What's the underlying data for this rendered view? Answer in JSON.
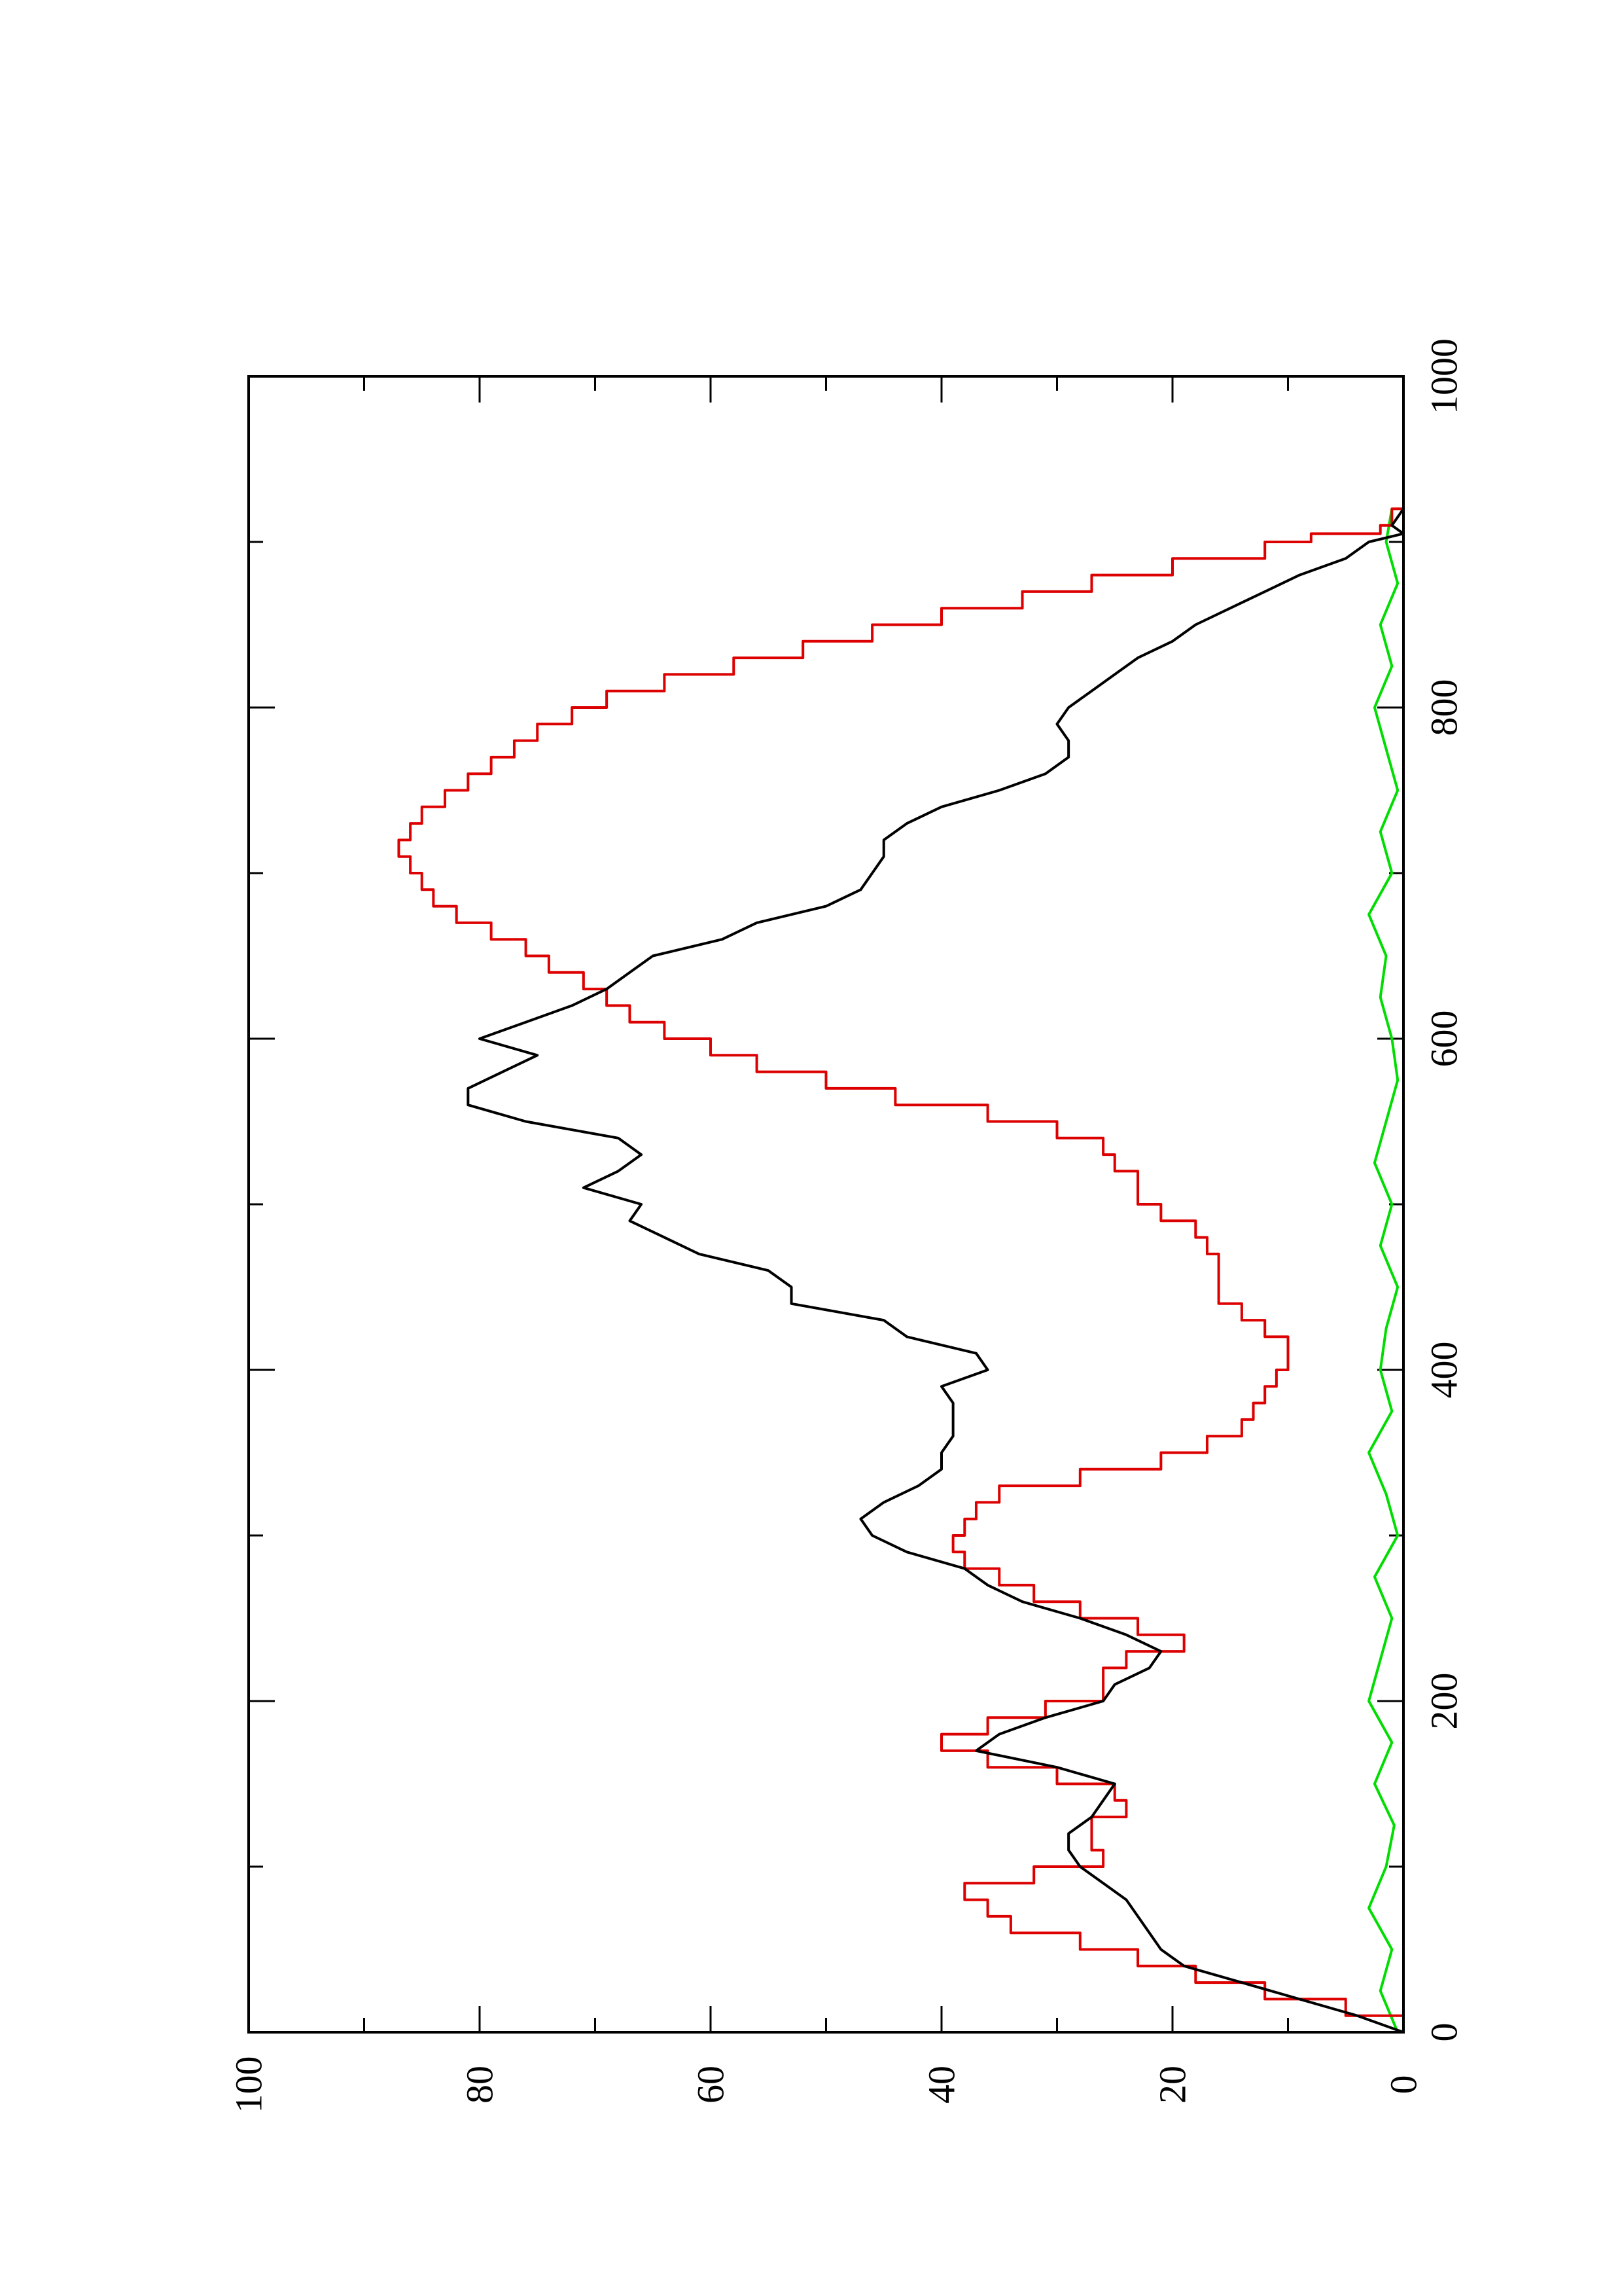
{
  "chart_data": {
    "type": "line",
    "title": "",
    "xlabel": "",
    "ylabel": "",
    "orientation": "rotated 90 degrees counter-clockwise",
    "xlim": [
      0,
      1000
    ],
    "ylim": [
      0,
      100
    ],
    "x_ticks_major": [
      0,
      200,
      400,
      600,
      800,
      1000
    ],
    "x_tick_labels": [
      "0",
      "200",
      "400",
      "600",
      "800",
      "1000"
    ],
    "x_ticks_minor": [
      100,
      300,
      500,
      700,
      900
    ],
    "y_ticks_major": [
      0,
      20,
      40,
      60,
      80,
      100
    ],
    "y_tick_labels": [
      "0",
      "20",
      "40",
      "60",
      "80",
      "100"
    ],
    "y_ticks_minor": [
      10,
      30,
      50,
      70,
      90
    ],
    "grid": false,
    "legend": "none",
    "series": [
      {
        "color": "#000000",
        "style": "line",
        "x": [
          0,
          10,
          20,
          30,
          40,
          50,
          60,
          70,
          80,
          90,
          100,
          110,
          120,
          130,
          140,
          150,
          160,
          170,
          180,
          190,
          200,
          210,
          220,
          230,
          240,
          250,
          260,
          270,
          280,
          290,
          300,
          310,
          320,
          330,
          340,
          350,
          360,
          370,
          380,
          390,
          400,
          410,
          420,
          430,
          440,
          450,
          460,
          470,
          480,
          490,
          500,
          510,
          520,
          530,
          540,
          550,
          560,
          570,
          580,
          590,
          600,
          610,
          620,
          630,
          640,
          650,
          660,
          670,
          680,
          690,
          700,
          710,
          720,
          730,
          740,
          750,
          760,
          770,
          780,
          790,
          800,
          810,
          820,
          830,
          840,
          850,
          860,
          870,
          880,
          890,
          900,
          905,
          910,
          920
        ],
        "y": [
          0,
          4,
          9,
          14,
          19,
          21,
          22,
          23,
          24,
          26,
          28,
          29,
          29,
          27,
          26,
          25,
          30,
          37,
          35,
          31,
          26,
          25,
          22,
          21,
          24,
          28,
          33,
          36,
          38,
          43,
          46,
          47,
          45,
          42,
          40,
          40,
          39,
          39,
          39,
          40,
          36,
          37,
          43,
          45,
          53,
          53,
          55,
          61,
          64,
          67,
          66,
          71,
          68,
          66,
          68,
          76,
          81,
          81,
          78,
          75,
          80,
          76,
          72,
          69,
          67,
          65,
          59,
          56,
          50,
          47,
          46,
          45,
          45,
          43,
          40,
          35,
          31,
          29,
          29,
          30,
          29,
          27,
          25,
          23,
          20,
          18,
          15,
          12,
          9,
          5,
          3,
          0,
          1,
          0
        ]
      },
      {
        "color": "#dd0000",
        "style": "step",
        "x": [
          0,
          10,
          20,
          30,
          40,
          50,
          60,
          70,
          80,
          90,
          100,
          110,
          120,
          130,
          140,
          150,
          160,
          170,
          180,
          190,
          200,
          210,
          220,
          230,
          240,
          250,
          260,
          270,
          280,
          290,
          300,
          310,
          320,
          330,
          340,
          350,
          360,
          370,
          380,
          390,
          400,
          410,
          420,
          430,
          440,
          450,
          460,
          470,
          480,
          490,
          500,
          510,
          520,
          530,
          540,
          550,
          560,
          570,
          580,
          590,
          600,
          610,
          620,
          630,
          640,
          650,
          660,
          670,
          680,
          690,
          700,
          710,
          720,
          730,
          740,
          750,
          760,
          770,
          780,
          790,
          800,
          810,
          820,
          830,
          840,
          850,
          860,
          870,
          880,
          890,
          900,
          905,
          910,
          920
        ],
        "y": [
          0,
          5,
          12,
          18,
          23,
          28,
          34,
          36,
          38,
          32,
          26,
          27,
          27,
          24,
          25,
          30,
          36,
          40,
          36,
          31,
          26,
          26,
          24,
          19,
          23,
          28,
          32,
          35,
          38,
          39,
          38,
          37,
          35,
          28,
          21,
          17,
          14,
          13,
          12,
          11,
          10,
          10,
          12,
          14,
          16,
          16,
          16,
          17,
          18,
          21,
          23,
          23,
          25,
          26,
          30,
          36,
          44,
          50,
          56,
          60,
          64,
          67,
          69,
          71,
          74,
          76,
          79,
          82,
          84,
          85,
          86,
          87,
          86,
          85,
          83,
          81,
          79,
          77,
          75,
          72,
          69,
          64,
          58,
          52,
          46,
          40,
          33,
          27,
          20,
          12,
          8,
          2,
          1,
          0
        ]
      },
      {
        "color": "#00dd00",
        "style": "line",
        "x": [
          0,
          25,
          50,
          75,
          100,
          125,
          150,
          175,
          200,
          225,
          250,
          275,
          300,
          325,
          350,
          375,
          400,
          425,
          450,
          475,
          500,
          525,
          550,
          575,
          600,
          625,
          650,
          675,
          700,
          725,
          750,
          775,
          800,
          825,
          850,
          875,
          900,
          920
        ],
        "y": [
          0.5,
          2,
          1,
          3,
          1.5,
          0.8,
          2.5,
          1,
          3,
          2,
          1,
          2.5,
          0.5,
          1.5,
          3,
          1,
          2,
          1.5,
          0.5,
          2,
          1,
          2.5,
          1.5,
          0.5,
          1,
          2,
          1.5,
          3,
          1,
          2,
          0.5,
          1.5,
          2.5,
          1,
          2,
          0.5,
          1.5,
          1
        ]
      }
    ]
  }
}
